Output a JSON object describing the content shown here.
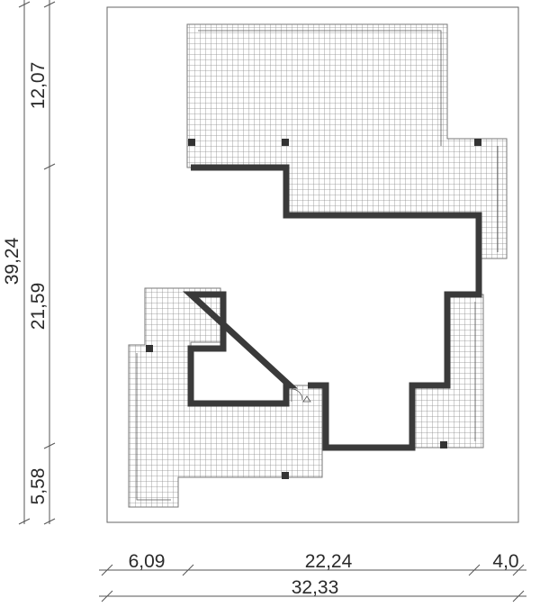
{
  "dimensions": {
    "left_outer": "39,24",
    "left_top": "12,07",
    "left_middle": "21,59",
    "left_bottom": "5,58",
    "bottom_left": "6,09",
    "bottom_middle": "22,24",
    "bottom_right": "4,0",
    "bottom_total": "32,33"
  }
}
